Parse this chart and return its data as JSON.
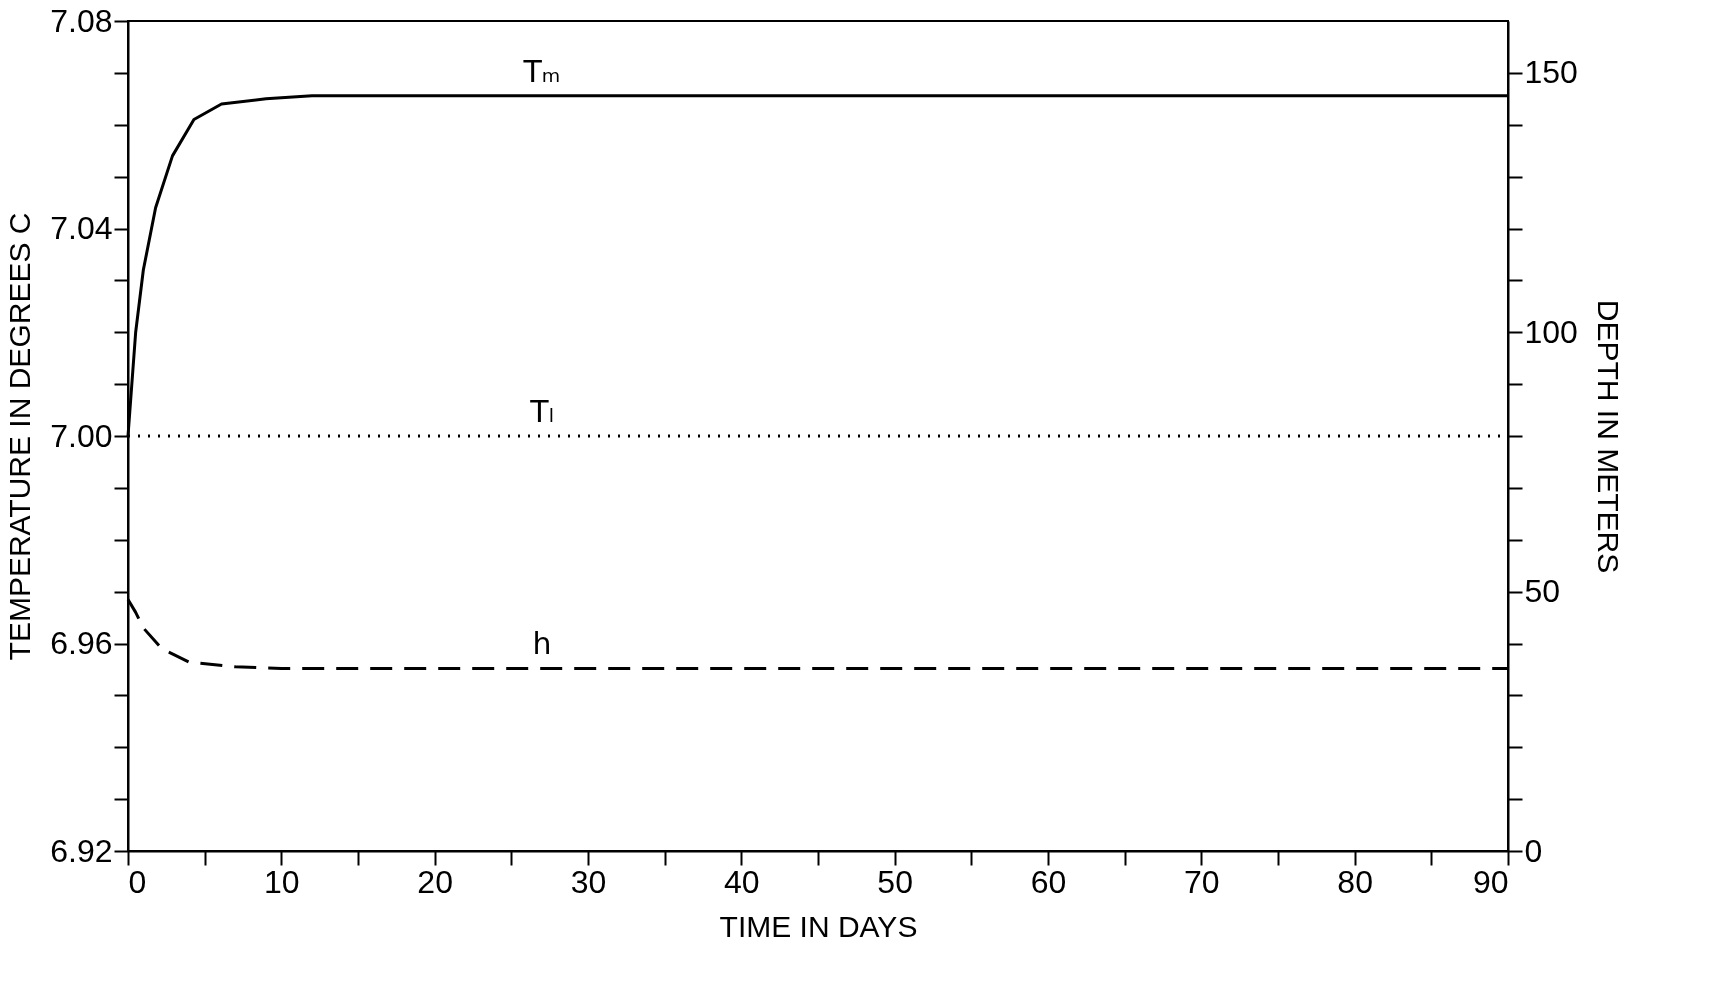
{
  "chart_data": {
    "type": "line",
    "xlabel": "TIME IN DAYS",
    "ylabel": "TEMPERATURE IN DEGREES C",
    "y2label": "DEPTH IN METERS",
    "xlim": [
      0,
      90
    ],
    "xticks": [
      0,
      {
        "value": 5,
        "label": null
      },
      10,
      {
        "value": 15,
        "label": null
      },
      20,
      {
        "value": 25,
        "label": null
      },
      30,
      {
        "value": 35,
        "label": null
      },
      40,
      {
        "value": 45,
        "label": null
      },
      50,
      {
        "value": 55,
        "label": null
      },
      60,
      {
        "value": 65,
        "label": null
      },
      70,
      {
        "value": 75,
        "label": null
      },
      80,
      {
        "value": 85,
        "label": null
      },
      90
    ],
    "ylim": [
      6.92,
      7.08
    ],
    "yticks": [
      6.92,
      {
        "value": 6.93,
        "label": null
      },
      {
        "value": 6.94,
        "label": null
      },
      {
        "value": 6.95,
        "label": null
      },
      6.96,
      {
        "value": 6.97,
        "label": null
      },
      {
        "value": 6.98,
        "label": null
      },
      {
        "value": 6.99,
        "label": null
      },
      {
        "value": 7.0,
        "label": "7.00"
      },
      {
        "value": 7.01,
        "label": null
      },
      {
        "value": 7.02,
        "label": null
      },
      {
        "value": 7.03,
        "label": null
      },
      7.04,
      {
        "value": 7.05,
        "label": null
      },
      {
        "value": 7.06,
        "label": null
      },
      {
        "value": 7.07,
        "label": null
      },
      7.08
    ],
    "y2lim": [
      0,
      160
    ],
    "y2ticks": [
      0,
      {
        "value": 10,
        "label": null
      },
      {
        "value": 20,
        "label": null
      },
      {
        "value": 30,
        "label": null
      },
      {
        "value": 40,
        "label": null
      },
      50,
      {
        "value": 60,
        "label": null
      },
      {
        "value": 70,
        "label": null
      },
      {
        "value": 80,
        "label": null
      },
      {
        "value": 90,
        "label": null
      },
      100,
      {
        "value": 110,
        "label": null
      },
      {
        "value": 120,
        "label": null
      },
      {
        "value": 130,
        "label": null
      },
      {
        "value": 140,
        "label": null
      },
      150
    ],
    "marker": "none",
    "series": [
      {
        "name": "Tₘ",
        "color": "#000000",
        "line_style": "solid",
        "x": [
          0,
          0.5,
          1,
          1.8,
          2.9,
          4.3,
          6.1,
          9,
          12,
          20,
          40,
          60,
          90
        ],
        "values": [
          7.0,
          7.02,
          7.032,
          7.044,
          7.054,
          7.061,
          7.064,
          7.065,
          7.0656,
          7.0656,
          7.0656,
          7.0656,
          7.0656
        ]
      },
      {
        "name": "Tₗ",
        "color": "#000000",
        "line_style": "dotted",
        "x": [
          0,
          90
        ],
        "values": [
          7.0,
          7.0
        ]
      },
      {
        "name": "h",
        "color": "#000000",
        "line_style": "dashed",
        "axis": "y2",
        "x": [
          0,
          0.5,
          1,
          2.2,
          4,
          7,
          10,
          30,
          60,
          90
        ],
        "values": [
          48.5,
          46,
          43,
          39,
          36.4,
          35.5,
          35.2,
          35.2,
          35.2,
          35.2
        ]
      }
    ]
  }
}
